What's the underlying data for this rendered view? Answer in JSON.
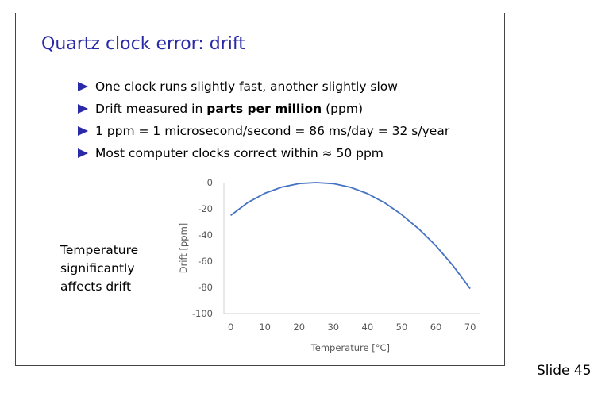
{
  "slide": {
    "title": "Quartz clock error: drift",
    "bullets": [
      {
        "pre": "One clock runs slightly fast, another slightly slow",
        "bold": "",
        "post": ""
      },
      {
        "pre": "Drift measured in ",
        "bold": "parts per million",
        "post": " (ppm)"
      },
      {
        "pre": "1 ppm = 1 microsecond/second = 86 ms/day = 32 s/year",
        "bold": "",
        "post": ""
      },
      {
        "pre": "Most computer clocks correct within ≈ 50 ppm",
        "bold": "",
        "post": ""
      }
    ],
    "side_note": [
      "Temperature",
      "significantly",
      "affects drift"
    ],
    "slide_number": "Slide 45",
    "accent_color": "#2a2aa8"
  },
  "chart_data": {
    "type": "line",
    "title": "",
    "xlabel": "Temperature [°C]",
    "ylabel": "Drift [ppm]",
    "x_ticks": [
      0,
      10,
      20,
      30,
      40,
      50,
      60,
      70
    ],
    "y_ticks": [
      0,
      -20,
      -40,
      -60,
      -80,
      -100
    ],
    "xlim": [
      -2,
      73
    ],
    "ylim": [
      -100,
      0
    ],
    "grid": false,
    "line_color": "#4472c4",
    "series": [
      {
        "x": [
          0,
          5,
          10,
          15,
          20,
          25,
          30,
          35,
          40,
          45,
          50,
          55,
          60,
          65,
          70
        ],
        "y": [
          -25,
          -15.2,
          -8.1,
          -3.4,
          -0.7,
          0,
          -0.8,
          -3.6,
          -8.4,
          -15.4,
          -24.4,
          -35.4,
          -48.2,
          -63.4,
          -81
        ]
      }
    ]
  }
}
